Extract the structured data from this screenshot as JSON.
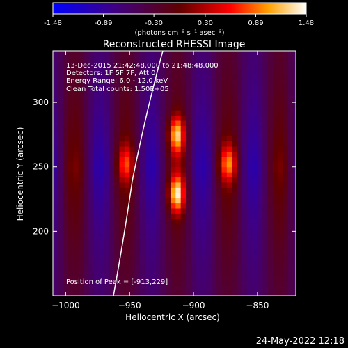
{
  "chart_data": {
    "type": "heatmap",
    "title": "Reconstructed RHESSI Image",
    "xlabel": "Heliocentric X (arcsec)",
    "ylabel": "Heliocentric Y (arcsec)",
    "xlim": [
      -1010,
      -820
    ],
    "ylim": [
      150,
      340
    ],
    "x_ticks": [
      -1000,
      -950,
      -900,
      -850
    ],
    "y_ticks": [
      200,
      250,
      300
    ],
    "colorbar": {
      "label": "(photons cm⁻² s⁻¹ asec⁻²)",
      "range": [
        -1.48,
        1.48
      ],
      "ticks": [
        "-1.48",
        "-0.89",
        "-0.30",
        "0.30",
        "0.89",
        "1.48"
      ],
      "colors": [
        "#0000ff",
        "#4b0082",
        "#800000",
        "#ff0000",
        "#ffa500",
        "#ffffff"
      ]
    },
    "annotations": [
      "13-Dec-2015 21:42:48.000 to 21:48:48.000",
      "Detectors: 1F 5F 7F, Att 0",
      "Energy Range: 6.0 - 12.0 keV",
      "Clean     Total counts: 1.50E+05"
    ],
    "peak_text": "Position of Peak = [-913,229]",
    "peak": {
      "x": -913,
      "y": 229
    },
    "sources": [
      {
        "x": -913,
        "y": 229,
        "value": 1.48
      },
      {
        "x": -913,
        "y": 275,
        "value": 1.35
      },
      {
        "x": -873,
        "y": 253,
        "value": 0.95
      },
      {
        "x": -953,
        "y": 253,
        "value": 0.75
      }
    ]
  },
  "footer": {
    "timestamp": "24-May-2022 12:18"
  }
}
